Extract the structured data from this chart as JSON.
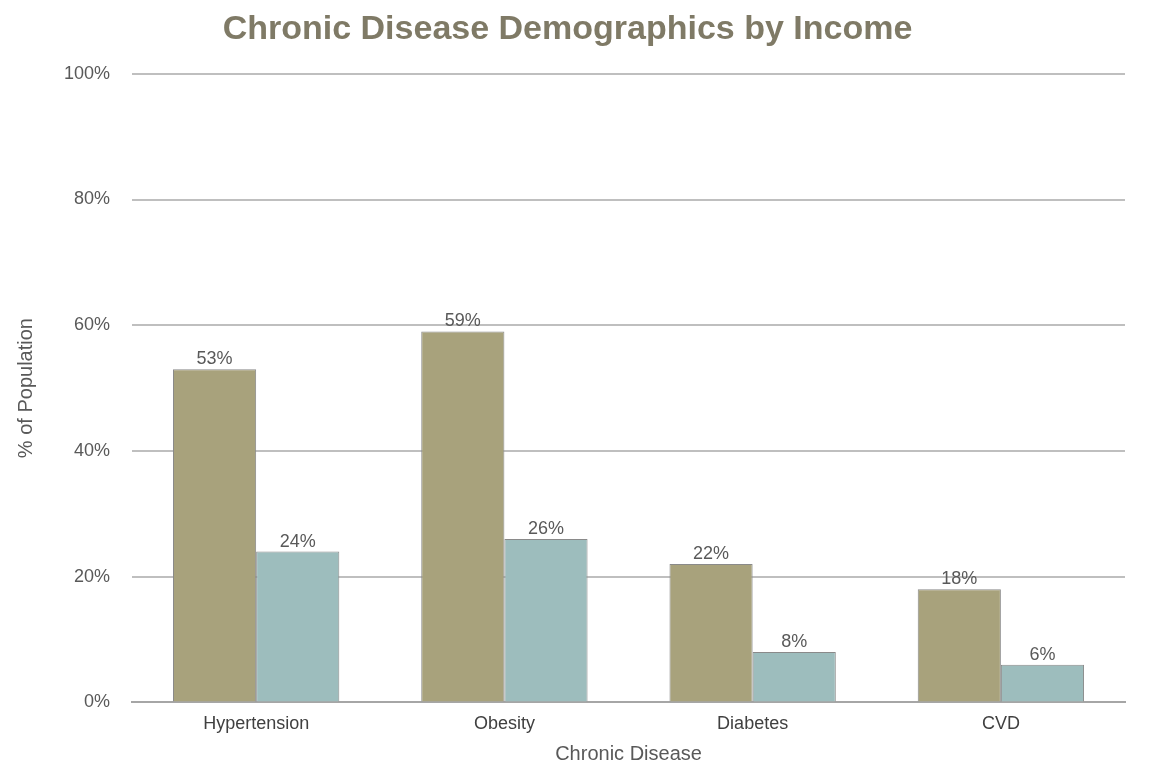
{
  "chart_data": {
    "type": "bar",
    "title": "Chronic Disease Demographics by Income",
    "xlabel": "Chronic Disease",
    "ylabel": "% of Population",
    "categories": [
      "Hypertension",
      "Obesity",
      "Diabetes",
      "CVD"
    ],
    "series": [
      {
        "color": "#a8a27c",
        "values": [
          53,
          59,
          22,
          18
        ],
        "value_labels": [
          "53%",
          "59%",
          "22%",
          "18%"
        ]
      },
      {
        "color": "#9dbdbd",
        "values": [
          24,
          26,
          8,
          6
        ],
        "value_labels": [
          "24%",
          "26%",
          "8%",
          "6%"
        ]
      }
    ],
    "ylim": [
      0,
      100
    ],
    "yticks": [
      {
        "value": 0,
        "label": "0%"
      },
      {
        "value": 20,
        "label": "20%"
      },
      {
        "value": 40,
        "label": "40%"
      },
      {
        "value": 60,
        "label": "60%"
      },
      {
        "value": 80,
        "label": "80%"
      },
      {
        "value": 100,
        "label": "100%"
      }
    ],
    "grid": "y",
    "legend": false
  }
}
